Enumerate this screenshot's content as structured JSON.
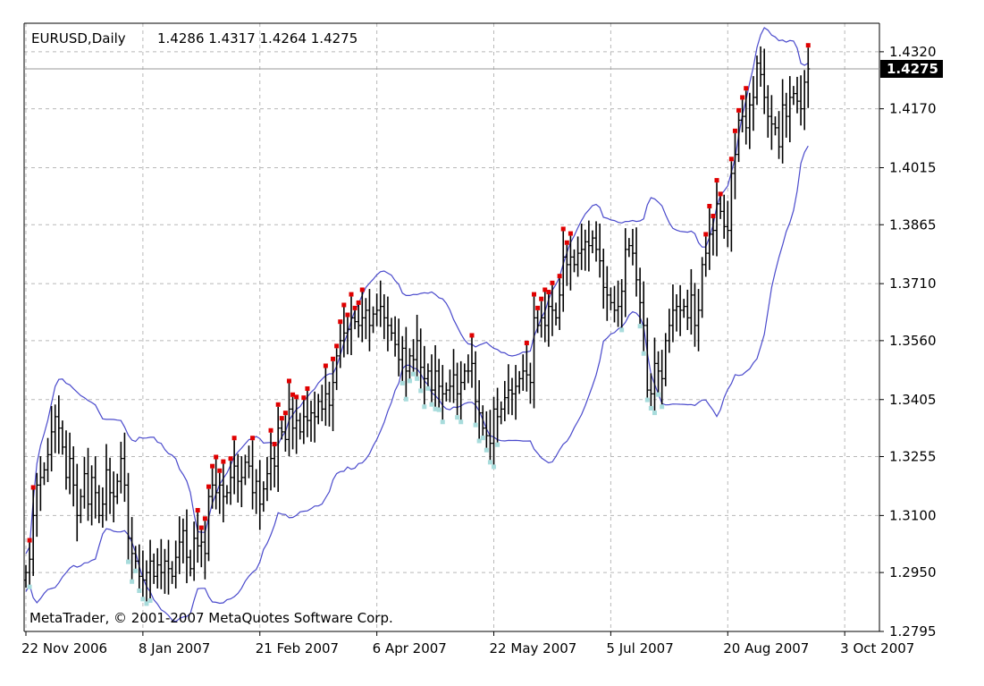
{
  "header": {
    "symbol": "EURUSD,Daily",
    "ohlc": "1.4286 1.4317 1.4264 1.4275"
  },
  "watermark": "MetaTrader, © 2001-2007 MetaQuotes Software Corp.",
  "colors": {
    "background": "#ffffff",
    "bars": "#000000",
    "bands": "#4a4acc",
    "grid": "#b8b8b8",
    "up_signal": "#e00000",
    "down_signal": "#a8dcdc",
    "price_line": "#9a9a9a",
    "price_label_bg": "#000000",
    "price_label_fg": "#ffffff"
  },
  "chart_data": {
    "type": "bar",
    "indicator": "Bollinger Bands",
    "ylim": [
      1.2795,
      1.4395
    ],
    "current_price": "1.4275",
    "y_ticks": [
      "1.4320",
      "1.4170",
      "1.4015",
      "1.3865",
      "1.3710",
      "1.3560",
      "1.3405",
      "1.3255",
      "1.3100",
      "1.2950",
      "1.2795"
    ],
    "x_ticks": [
      {
        "label": "22 Nov 2006",
        "index": 0
      },
      {
        "label": "8 Jan 2007",
        "index": 32
      },
      {
        "label": "21 Feb 2007",
        "index": 64
      },
      {
        "label": "6 Apr 2007",
        "index": 96
      },
      {
        "label": "22 May 2007",
        "index": 128
      },
      {
        "label": "5 Jul 2007",
        "index": 160
      },
      {
        "label": "20 Aug 2007",
        "index": 192
      },
      {
        "label": "3 Oct 2007",
        "index": 224
      }
    ],
    "series": [
      {
        "name": "close",
        "values": [
          1.295,
          1.2985,
          1.31,
          1.318,
          1.32,
          1.322,
          1.326,
          1.332,
          1.336,
          1.333,
          1.328,
          1.32,
          1.325,
          1.318,
          1.31,
          1.315,
          1.321,
          1.313,
          1.32,
          1.316,
          1.31,
          1.313,
          1.322,
          1.316,
          1.315,
          1.319,
          1.325,
          1.318,
          1.304,
          1.3,
          1.298,
          1.294,
          1.293,
          1.295,
          1.298,
          1.294,
          1.297,
          1.295,
          1.298,
          1.296,
          1.294,
          1.299,
          1.303,
          1.306,
          1.299,
          1.296,
          1.304,
          1.302,
          1.303,
          1.3,
          1.315,
          1.318,
          1.316,
          1.318,
          1.315,
          1.316,
          1.32,
          1.323,
          1.319,
          1.32,
          1.324,
          1.323,
          1.316,
          1.319,
          1.313,
          1.317,
          1.321,
          1.325,
          1.323,
          1.333,
          1.332,
          1.33,
          1.338,
          1.333,
          1.335,
          1.332,
          1.336,
          1.335,
          1.337,
          1.336,
          1.34,
          1.338,
          1.342,
          1.339,
          1.345,
          1.352,
          1.356,
          1.358,
          1.359,
          1.362,
          1.361,
          1.36,
          1.362,
          1.364,
          1.36,
          1.363,
          1.364,
          1.365,
          1.362,
          1.36,
          1.358,
          1.355,
          1.351,
          1.354,
          1.348,
          1.352,
          1.351,
          1.356,
          1.349,
          1.346,
          1.348,
          1.343,
          1.348,
          1.344,
          1.342,
          1.343,
          1.344,
          1.347,
          1.342,
          1.345,
          1.348,
          1.348,
          1.35,
          1.34,
          1.337,
          1.333,
          1.331,
          1.329,
          1.338,
          1.336,
          1.338,
          1.341,
          1.343,
          1.342,
          1.344,
          1.346,
          1.348,
          1.347,
          1.345,
          1.362,
          1.36,
          1.362,
          1.36,
          1.365,
          1.364,
          1.362,
          1.368,
          1.378,
          1.376,
          1.378,
          1.376,
          1.379,
          1.38,
          1.382,
          1.381,
          1.383,
          1.38,
          1.377,
          1.37,
          1.368,
          1.366,
          1.364,
          1.365,
          1.369,
          1.38,
          1.381,
          1.379,
          1.372,
          1.366,
          1.36,
          1.343,
          1.342,
          1.35,
          1.348,
          1.346,
          1.356,
          1.36,
          1.364,
          1.365,
          1.364,
          1.365,
          1.362,
          1.368,
          1.36,
          1.364,
          1.376,
          1.379,
          1.384,
          1.385,
          1.392,
          1.39,
          1.386,
          1.385,
          1.4,
          1.405,
          1.414,
          1.415,
          1.412,
          1.418,
          1.42,
          1.429,
          1.426,
          1.42,
          1.415,
          1.413,
          1.412,
          1.407,
          1.418,
          1.415,
          1.42,
          1.421,
          1.419,
          1.417,
          1.424,
          1.4275
        ]
      }
    ]
  }
}
